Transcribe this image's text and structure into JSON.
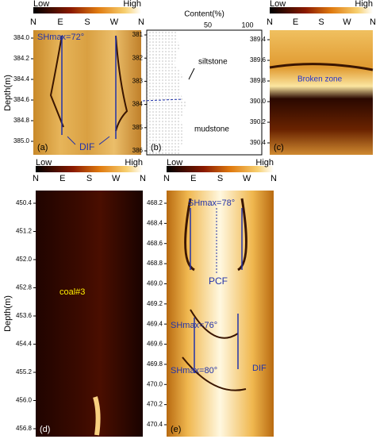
{
  "y_axis_label": "Depth(m)",
  "panels": [
    {
      "label": "(a)",
      "colorbar": [
        "Low",
        "High"
      ],
      "compass": [
        "N",
        "E",
        "S",
        "W",
        "N"
      ],
      "depth_ticks": [
        "384.0",
        "384.2",
        "384.4",
        "384.6",
        "384.8",
        "385.0"
      ],
      "annotations": [
        "SHmax=72°",
        "DIF"
      ]
    },
    {
      "label": "(b)",
      "x_label": "Content(%)",
      "x_ticks": [
        "50",
        "100"
      ],
      "depth_ticks": [
        "381",
        "382",
        "383",
        "384",
        "385",
        "386"
      ],
      "annotations": [
        "siltstone",
        "mudstone"
      ]
    },
    {
      "label": "(c)",
      "colorbar": [
        "Low",
        "High"
      ],
      "compass": [
        "N",
        "E",
        "S",
        "W",
        "N"
      ],
      "depth_ticks": [
        "389.4",
        "389.6",
        "389.8",
        "390.0",
        "390.2",
        "390.4"
      ],
      "annotations": [
        "Broken zone"
      ]
    },
    {
      "label": "(d)",
      "colorbar": [
        "Low",
        "High"
      ],
      "compass": [
        "N",
        "E",
        "S",
        "W",
        "N"
      ],
      "depth_ticks": [
        "450.4",
        "451.2",
        "452.0",
        "452.8",
        "453.6",
        "454.4",
        "455.2",
        "456.0",
        "456.8"
      ],
      "annotations": [
        "coal#3"
      ]
    },
    {
      "label": "(e)",
      "colorbar": [
        "Low",
        "High"
      ],
      "compass": [
        "N",
        "E",
        "S",
        "W",
        "N"
      ],
      "depth_ticks": [
        "468.2",
        "468.4",
        "468.6",
        "468.8",
        "469.0",
        "469.2",
        "469.4",
        "469.6",
        "469.8",
        "470.0",
        "470.2",
        "470.4"
      ],
      "annotations": [
        "SHmax=78°",
        "PCF",
        "SHmax=76°",
        "SHmax=80°",
        "DIF"
      ]
    }
  ]
}
